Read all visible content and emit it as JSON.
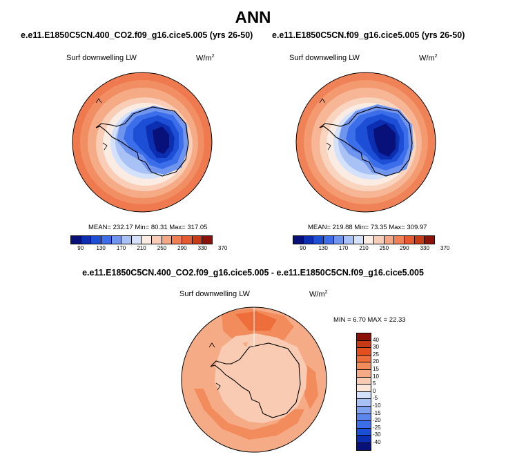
{
  "main_title": "ANN",
  "panels": [
    {
      "case_title": "e.e11.E1850C5CN.400_CO2.f09_g16.cice5.005 (yrs 26-50)",
      "variable": "Surf downwelling LW",
      "units_base": "W/m",
      "units_exp": "2",
      "stats_text": "MEAN= 232.17  Min=  80.31  Max= 317.05"
    },
    {
      "case_title": "e.e11.E1850C5CN.f09_g16.cice5.005 (yrs 26-50)",
      "variable": "Surf downwelling LW",
      "units_base": "W/m",
      "units_exp": "2",
      "stats_text": "MEAN= 219.88  Min=  73.35  Max= 309.97"
    }
  ],
  "diff_panel": {
    "title": "e.e11.E1850C5CN.400_CO2.f09_g16.cice5.005 - e.e11.E1850C5CN.f09_g16.cice5.005",
    "variable": "Surf downwelling LW",
    "units_base": "W/m",
    "units_exp": "2",
    "stats_text": "MIN =   6.70 MAX =  22.33"
  },
  "colorbar": {
    "colors": [
      "#08107a",
      "#0b2fb0",
      "#1d4fd6",
      "#3b6ee8",
      "#6f95ef",
      "#a9c2f5",
      "#d3e1fa",
      "#fbece3",
      "#f8cdb5",
      "#f5a784",
      "#f07f56",
      "#e55a30",
      "#c93a16",
      "#8a1208"
    ],
    "tick_labels": [
      "90",
      "130",
      "170",
      "210",
      "250",
      "290",
      "330",
      "370"
    ]
  },
  "diff_colorbar": {
    "colors": [
      "#8a1208",
      "#c93a16",
      "#e2501f",
      "#ee6e3b",
      "#f28c5c",
      "#f5ab86",
      "#f8cbb2",
      "#fbe7d9",
      "#d3e1fa",
      "#a9c2f5",
      "#7ea2f0",
      "#5c86ea",
      "#3b6ee8",
      "#1d4fd6",
      "#0b2fb0",
      "#08107a"
    ],
    "tick_labels": [
      "40",
      "30",
      "25",
      "20",
      "15",
      "10",
      "5",
      "0",
      "-5",
      "-10",
      "-15",
      "-20",
      "-25",
      "-30",
      "-40"
    ]
  }
}
